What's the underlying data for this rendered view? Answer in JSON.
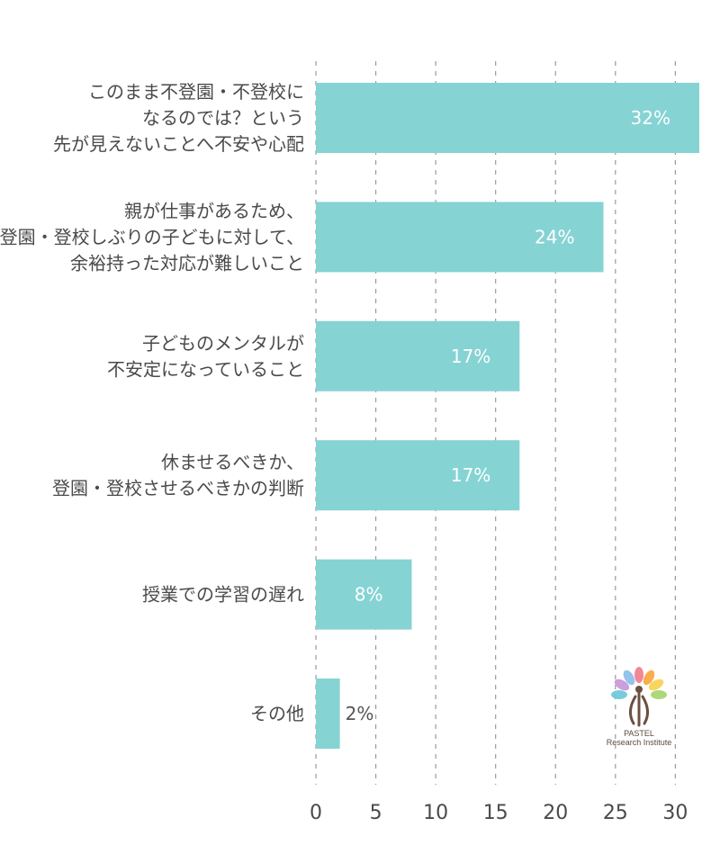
{
  "chart_data": {
    "type": "bar",
    "orientation": "horizontal",
    "categories": [
      [
        "このまま不登園・不登校に",
        "なるのでは？という",
        "先が見えないことへ不安や心配"
      ],
      [
        "親が仕事があるため、",
        "登園・登校しぶりの子どもに対して、",
        "余裕持った対応が難しいこと"
      ],
      [
        "子どものメンタルが",
        "不安定になっていること"
      ],
      [
        "休ませるべきか、",
        "登園・登校させるべきかの判断"
      ],
      [
        "授業での学習の遅れ"
      ],
      [
        "その他"
      ]
    ],
    "values": [
      32,
      24,
      17,
      17,
      8,
      2
    ],
    "value_labels": [
      "32%",
      "24%",
      "17%",
      "17%",
      "8%",
      "2%"
    ],
    "xlim": [
      0,
      32
    ],
    "xticks": [
      0,
      5,
      10,
      15,
      20,
      25,
      30
    ],
    "grid": true,
    "bar_color": "#86d3d4"
  },
  "logo": {
    "line1": "PASTEL",
    "line2": "Research Institute",
    "petal_colors": [
      "#f07b8c",
      "#f9a43a",
      "#f7d04a",
      "#a3d46a",
      "#6cc7d6",
      "#c594d8",
      "#f19cc6",
      "#8ac6f0"
    ]
  }
}
